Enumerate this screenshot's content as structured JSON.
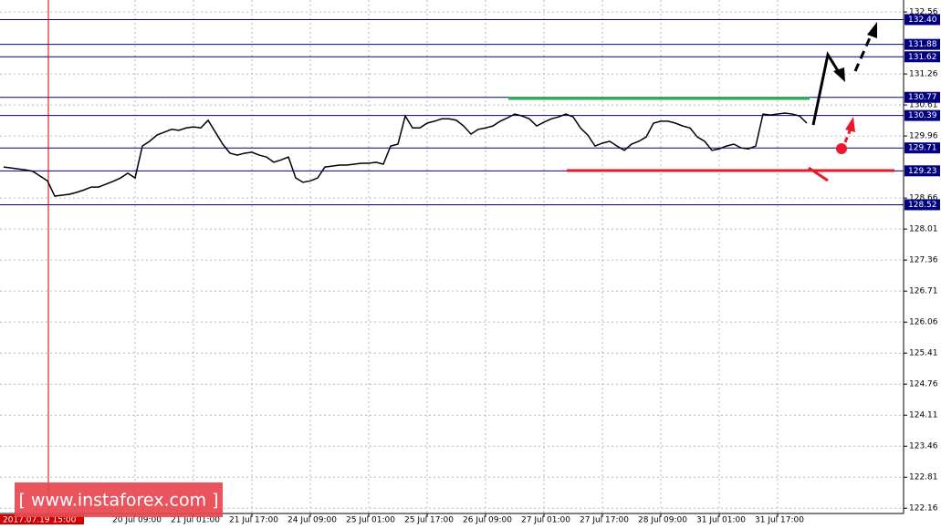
{
  "chart_data": {
    "type": "line",
    "color": "#000000",
    "grid": true,
    "ylim": [
      122.05,
      132.81
    ],
    "yticks": [
      122.16,
      122.81,
      123.46,
      124.11,
      124.76,
      125.41,
      126.06,
      126.71,
      127.36,
      128.01,
      128.66,
      129.96,
      130.61,
      131.26,
      132.56
    ],
    "categories": [
      null,
      null,
      null,
      null,
      null,
      null,
      null,
      null,
      null,
      null,
      null,
      null,
      null,
      null,
      null,
      null,
      null,
      null,
      "20 Jul 09:00",
      null,
      null,
      null,
      null,
      null,
      null,
      null,
      "21 Jul 01:00",
      null,
      null,
      null,
      null,
      null,
      null,
      null,
      "21 Jul 17:00",
      null,
      null,
      null,
      null,
      null,
      null,
      null,
      "24 Jul 09:00",
      null,
      null,
      null,
      null,
      null,
      null,
      null,
      "25 Jul 01:00",
      null,
      null,
      null,
      null,
      null,
      null,
      null,
      "25 Jul 17:00",
      null,
      null,
      null,
      null,
      null,
      null,
      null,
      "26 Jul 09:00",
      null,
      null,
      null,
      null,
      null,
      null,
      null,
      "27 Jul 01:00",
      null,
      null,
      null,
      null,
      null,
      null,
      null,
      "27 Jul 17:00",
      null,
      null,
      null,
      null,
      null,
      null,
      null,
      "28 Jul 09:00",
      null,
      null,
      null,
      null,
      null,
      null,
      null,
      "31 Jul 01:00",
      null,
      null,
      null,
      null,
      null,
      null,
      null,
      "31 Jul 17:00",
      null,
      null,
      null,
      null
    ],
    "values": [
      129.31,
      129.29,
      129.27,
      129.25,
      129.22,
      129.12,
      129.02,
      128.7,
      128.72,
      128.74,
      128.78,
      128.83,
      128.89,
      128.89,
      128.95,
      129.01,
      129.08,
      129.18,
      129.08,
      129.75,
      129.85,
      129.98,
      130.04,
      130.1,
      130.08,
      130.13,
      130.15,
      130.13,
      130.29,
      130.04,
      129.79,
      129.6,
      129.56,
      129.6,
      129.62,
      129.56,
      129.52,
      129.41,
      129.46,
      129.52,
      129.08,
      128.99,
      129.02,
      129.08,
      129.31,
      129.33,
      129.35,
      129.35,
      129.37,
      129.39,
      129.39,
      129.41,
      129.37,
      129.75,
      129.79,
      130.38,
      130.13,
      130.13,
      130.23,
      130.27,
      130.32,
      130.32,
      130.29,
      130.17,
      130.0,
      130.1,
      130.13,
      130.17,
      130.27,
      130.34,
      130.42,
      130.38,
      130.32,
      130.17,
      130.25,
      130.32,
      130.36,
      130.42,
      130.36,
      130.13,
      129.98,
      129.75,
      129.81,
      129.85,
      129.75,
      129.66,
      129.79,
      129.85,
      129.94,
      130.23,
      130.27,
      130.27,
      130.23,
      130.17,
      130.13,
      129.94,
      129.85,
      129.66,
      129.69,
      129.75,
      129.79,
      129.71,
      129.69,
      129.75,
      130.42,
      130.4,
      130.42,
      130.44,
      130.42,
      130.38,
      130.23
    ],
    "levels": [
      {
        "value": 132.4,
        "label": "132.40"
      },
      {
        "value": 131.88,
        "label": "131.88"
      },
      {
        "value": 131.62,
        "label": "131.62"
      },
      {
        "value": 130.77,
        "label": "130.77"
      },
      {
        "value": 130.39,
        "label": "130.39"
      },
      {
        "value": 129.71,
        "label": "129.71"
      },
      {
        "value": 129.23,
        "label": "129.23"
      },
      {
        "value": 128.52,
        "label": "128.52"
      }
    ],
    "cursor_label": "2017.07.19 15:00",
    "watermark": "[ www.instaforex.com ]"
  }
}
